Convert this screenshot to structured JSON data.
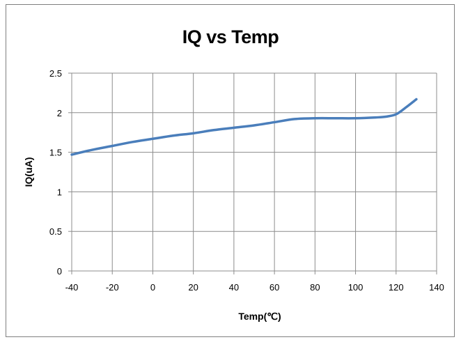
{
  "chart_data": {
    "type": "line",
    "title": "IQ vs Temp",
    "xlabel": "Temp(℃)",
    "ylabel": "IQ(uA)",
    "xlim": [
      -40,
      140
    ],
    "ylim": [
      0,
      2.5
    ],
    "xticks": [
      -40,
      -20,
      0,
      20,
      40,
      60,
      80,
      100,
      120,
      140
    ],
    "yticks": [
      0,
      0.5,
      1,
      1.5,
      2,
      2.5
    ],
    "xtick_labels": [
      "-40",
      "-20",
      "0",
      "20",
      "40",
      "60",
      "80",
      "100",
      "120",
      "140"
    ],
    "ytick_labels": [
      "0",
      "0.5",
      "1",
      "1.5",
      "2",
      "2.5"
    ],
    "grid": true,
    "series": [
      {
        "color": "#4a7ebb",
        "x": [
          -40,
          -30,
          -20,
          -10,
          0,
          10,
          20,
          30,
          40,
          50,
          60,
          70,
          80,
          90,
          100,
          110,
          115,
          120,
          125,
          130
        ],
        "y": [
          1.47,
          1.53,
          1.58,
          1.63,
          1.67,
          1.71,
          1.74,
          1.78,
          1.81,
          1.84,
          1.88,
          1.92,
          1.93,
          1.93,
          1.93,
          1.94,
          1.95,
          1.98,
          2.07,
          2.17
        ]
      }
    ]
  }
}
